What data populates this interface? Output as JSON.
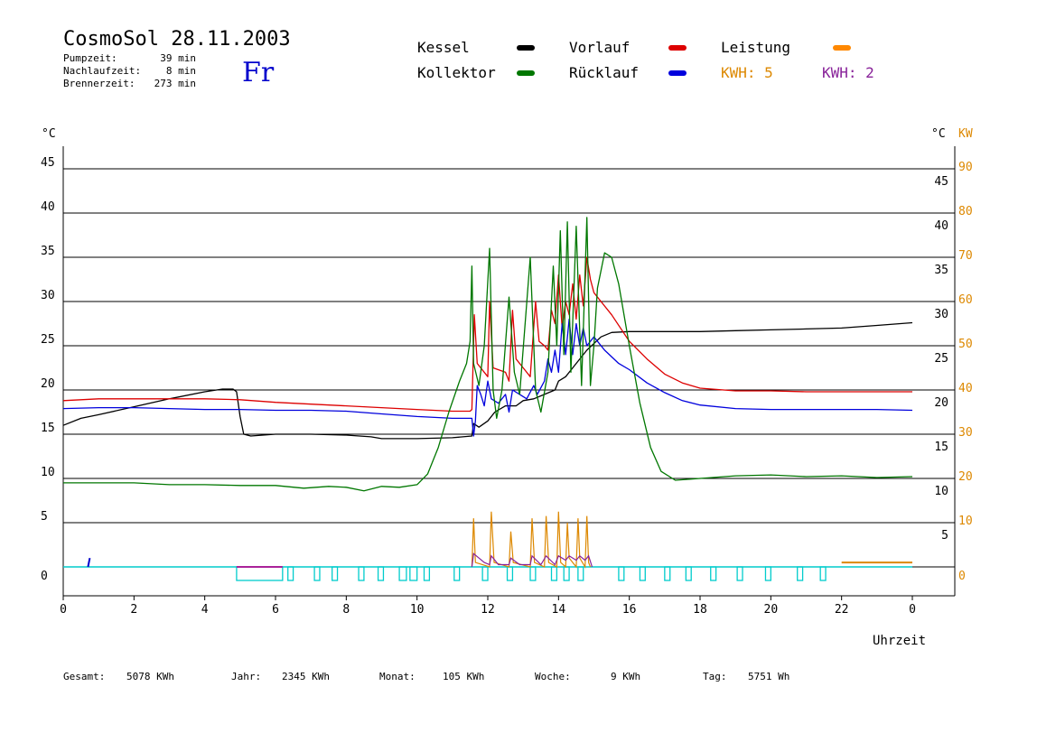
{
  "header": {
    "title": "CosmoSol 28.11.2003",
    "weekday": "Fr",
    "stats": [
      {
        "label": "Pumpzeit:",
        "value": "39 min"
      },
      {
        "label": "Nachlaufzeit:",
        "value": "8 min"
      },
      {
        "label": "Brennerzeit:",
        "value": "273 min"
      }
    ]
  },
  "legend": [
    {
      "label": "Kessel",
      "color": "#000000"
    },
    {
      "label": "Vorlauf",
      "color": "#dd0000"
    },
    {
      "label": "Leistung",
      "color": "#ff8800"
    },
    {
      "label": "Kollektor",
      "color": "#007700"
    },
    {
      "label": "Rücklauf",
      "color": "#0000dd"
    }
  ],
  "kwh_labels": [
    {
      "text": "KWH: 5",
      "color": "#dd8800"
    },
    {
      "text": "KWH: 2",
      "color": "#882299"
    }
  ],
  "footer": [
    {
      "label": "Gesamt:",
      "value": "5078 KWh"
    },
    {
      "label": "Jahr:",
      "value": "2345 KWh"
    },
    {
      "label": "Monat:",
      "value": "105 KWh"
    },
    {
      "label": "Woche:",
      "value": "9 KWh"
    },
    {
      "label": "Tag:",
      "value": "5751 Wh"
    }
  ],
  "chart_data": {
    "type": "line",
    "xlabel": "Uhrzeit",
    "ylabel_left": "°C",
    "ylabel_right": "°C",
    "ylabel_power": "KW",
    "xlim": [
      0,
      24
    ],
    "ylim": [
      0,
      45
    ],
    "grid": true,
    "x_ticks": [
      "0",
      "2",
      "4",
      "6",
      "8",
      "10",
      "12",
      "14",
      "16",
      "18",
      "20",
      "22",
      "0"
    ],
    "y_ticks_left": [
      "5",
      "10",
      "15",
      "20",
      "25",
      "30",
      "35",
      "40",
      "45"
    ],
    "y_ticks_right": [
      "5",
      "10",
      "15",
      "20",
      "25",
      "30",
      "35",
      "40",
      "45"
    ],
    "power_ticks": [
      "0",
      "10",
      "20",
      "30",
      "40",
      "50",
      "60",
      "70",
      "80",
      "90"
    ],
    "zero_label": "0",
    "series": [
      {
        "name": "Kessel",
        "color": "#000000",
        "points": [
          [
            0,
            16
          ],
          [
            0.5,
            16.8
          ],
          [
            1,
            17.2
          ],
          [
            2,
            18.1
          ],
          [
            3,
            19
          ],
          [
            4,
            19.8
          ],
          [
            4.5,
            20.1
          ],
          [
            4.8,
            20.1
          ],
          [
            4.9,
            19.8
          ],
          [
            5,
            17
          ],
          [
            5.1,
            15
          ],
          [
            5.3,
            14.8
          ],
          [
            6,
            15
          ],
          [
            7,
            15
          ],
          [
            8,
            14.9
          ],
          [
            8.7,
            14.7
          ],
          [
            9,
            14.5
          ],
          [
            10,
            14.5
          ],
          [
            11,
            14.6
          ],
          [
            11.55,
            14.8
          ],
          [
            11.6,
            16.2
          ],
          [
            11.75,
            15.8
          ],
          [
            12,
            16.5
          ],
          [
            12.2,
            17.5
          ],
          [
            12.5,
            18.2
          ],
          [
            12.8,
            18.2
          ],
          [
            13,
            18.8
          ],
          [
            13.3,
            19
          ],
          [
            13.6,
            19.5
          ],
          [
            13.9,
            20
          ],
          [
            14,
            21
          ],
          [
            14.2,
            21.5
          ],
          [
            14.5,
            23
          ],
          [
            14.8,
            24.5
          ],
          [
            15.2,
            26
          ],
          [
            15.5,
            26.5
          ],
          [
            16,
            26.6
          ],
          [
            17,
            26.6
          ],
          [
            18,
            26.6
          ],
          [
            19,
            26.7
          ],
          [
            20,
            26.8
          ],
          [
            21,
            26.9
          ],
          [
            22,
            27
          ],
          [
            23,
            27.3
          ],
          [
            24,
            27.6
          ]
        ]
      },
      {
        "name": "Vorlauf",
        "color": "#dd0000",
        "points": [
          [
            0,
            18.8
          ],
          [
            1,
            19
          ],
          [
            2,
            19
          ],
          [
            3,
            19
          ],
          [
            4,
            19
          ],
          [
            5,
            18.9
          ],
          [
            6,
            18.6
          ],
          [
            7,
            18.4
          ],
          [
            8,
            18.2
          ],
          [
            9,
            18
          ],
          [
            10,
            17.8
          ],
          [
            11,
            17.6
          ],
          [
            11.5,
            17.6
          ],
          [
            11.55,
            17.8
          ],
          [
            11.62,
            28.5
          ],
          [
            11.7,
            23
          ],
          [
            12,
            21.5
          ],
          [
            12.05,
            30
          ],
          [
            12.15,
            22.5
          ],
          [
            12.5,
            22
          ],
          [
            12.6,
            21
          ],
          [
            12.7,
            29
          ],
          [
            12.8,
            23.5
          ],
          [
            13,
            22.5
          ],
          [
            13.2,
            21.5
          ],
          [
            13.35,
            30
          ],
          [
            13.45,
            25.5
          ],
          [
            13.6,
            25
          ],
          [
            13.7,
            24.5
          ],
          [
            13.8,
            29
          ],
          [
            13.9,
            27.5
          ],
          [
            14,
            33
          ],
          [
            14.1,
            27
          ],
          [
            14.2,
            30
          ],
          [
            14.3,
            28.5
          ],
          [
            14.4,
            32
          ],
          [
            14.5,
            28
          ],
          [
            14.6,
            33
          ],
          [
            14.7,
            29.5
          ],
          [
            14.8,
            35
          ],
          [
            14.9,
            32.5
          ],
          [
            15,
            31
          ],
          [
            15.2,
            30
          ],
          [
            15.5,
            28.5
          ],
          [
            16,
            25.5
          ],
          [
            16.5,
            23.5
          ],
          [
            17,
            21.8
          ],
          [
            17.5,
            20.8
          ],
          [
            18,
            20.2
          ],
          [
            19,
            19.9
          ],
          [
            20,
            19.9
          ],
          [
            21,
            19.8
          ],
          [
            22,
            19.8
          ],
          [
            23,
            19.8
          ],
          [
            24,
            19.8
          ]
        ]
      },
      {
        "name": "Rücklauf",
        "color": "#0000dd",
        "points": [
          [
            0,
            17.9
          ],
          [
            1,
            18
          ],
          [
            2,
            18
          ],
          [
            3,
            17.9
          ],
          [
            4,
            17.8
          ],
          [
            5,
            17.8
          ],
          [
            6,
            17.7
          ],
          [
            7,
            17.7
          ],
          [
            8,
            17.6
          ],
          [
            9,
            17.3
          ],
          [
            10,
            17
          ],
          [
            11,
            16.8
          ],
          [
            11.55,
            16.8
          ],
          [
            11.6,
            14.8
          ],
          [
            11.65,
            16.5
          ],
          [
            11.7,
            20.5
          ],
          [
            11.8,
            19.5
          ],
          [
            11.9,
            18.2
          ],
          [
            12,
            21
          ],
          [
            12.1,
            19
          ],
          [
            12.3,
            18.5
          ],
          [
            12.5,
            19.5
          ],
          [
            12.6,
            17.5
          ],
          [
            12.7,
            20
          ],
          [
            12.9,
            19.5
          ],
          [
            13.1,
            19
          ],
          [
            13.3,
            20.5
          ],
          [
            13.4,
            19.5
          ],
          [
            13.6,
            21
          ],
          [
            13.7,
            23.5
          ],
          [
            13.8,
            22
          ],
          [
            13.9,
            24.5
          ],
          [
            14,
            22
          ],
          [
            14.1,
            27.5
          ],
          [
            14.2,
            24
          ],
          [
            14.3,
            28
          ],
          [
            14.4,
            24
          ],
          [
            14.5,
            27.5
          ],
          [
            14.6,
            25
          ],
          [
            14.7,
            27
          ],
          [
            14.8,
            25
          ],
          [
            15,
            26
          ],
          [
            15.3,
            24.5
          ],
          [
            15.7,
            23
          ],
          [
            16,
            22.3
          ],
          [
            16.5,
            20.8
          ],
          [
            17,
            19.7
          ],
          [
            17.5,
            18.8
          ],
          [
            18,
            18.3
          ],
          [
            19,
            17.9
          ],
          [
            20,
            17.8
          ],
          [
            21,
            17.8
          ],
          [
            22,
            17.8
          ],
          [
            23,
            17.8
          ],
          [
            24,
            17.7
          ]
        ]
      },
      {
        "name": "Kollektor",
        "color": "#007700",
        "points": [
          [
            0,
            9.5
          ],
          [
            1,
            9.5
          ],
          [
            2,
            9.5
          ],
          [
            3,
            9.3
          ],
          [
            4,
            9.3
          ],
          [
            5,
            9.2
          ],
          [
            6,
            9.2
          ],
          [
            6.8,
            8.9
          ],
          [
            7.5,
            9.1
          ],
          [
            8,
            9
          ],
          [
            8.5,
            8.6
          ],
          [
            9,
            9.1
          ],
          [
            9.5,
            9
          ],
          [
            10,
            9.3
          ],
          [
            10.3,
            10.5
          ],
          [
            10.6,
            13.5
          ],
          [
            10.9,
            17.5
          ],
          [
            11.2,
            21
          ],
          [
            11.4,
            23
          ],
          [
            11.5,
            25.5
          ],
          [
            11.55,
            34
          ],
          [
            11.6,
            23
          ],
          [
            11.75,
            20.5
          ],
          [
            11.9,
            25
          ],
          [
            12.05,
            36
          ],
          [
            12.15,
            20
          ],
          [
            12.25,
            16.8
          ],
          [
            12.4,
            20
          ],
          [
            12.6,
            30.5
          ],
          [
            12.75,
            22
          ],
          [
            12.9,
            19.5
          ],
          [
            13.2,
            35
          ],
          [
            13.35,
            20
          ],
          [
            13.5,
            17.5
          ],
          [
            13.7,
            22
          ],
          [
            13.85,
            34
          ],
          [
            13.95,
            25
          ],
          [
            14.05,
            38
          ],
          [
            14.15,
            24
          ],
          [
            14.25,
            39
          ],
          [
            14.35,
            22
          ],
          [
            14.5,
            38.5
          ],
          [
            14.65,
            20.5
          ],
          [
            14.8,
            39.5
          ],
          [
            14.9,
            20.5
          ],
          [
            15,
            25
          ],
          [
            15.1,
            31.5
          ],
          [
            15.3,
            35.5
          ],
          [
            15.5,
            35
          ],
          [
            15.7,
            32
          ],
          [
            16,
            25
          ],
          [
            16.3,
            18.5
          ],
          [
            16.6,
            13.5
          ],
          [
            16.9,
            10.8
          ],
          [
            17.3,
            9.8
          ],
          [
            18,
            10
          ],
          [
            19,
            10.3
          ],
          [
            20,
            10.4
          ],
          [
            21,
            10.2
          ],
          [
            22,
            10.3
          ],
          [
            23,
            10.1
          ],
          [
            24,
            10.2
          ]
        ]
      }
    ],
    "cyan_pulses": [
      [
        4.9,
        6.2
      ],
      [
        6.35,
        6.5
      ],
      [
        7.1,
        7.25
      ],
      [
        7.6,
        7.75
      ],
      [
        8.35,
        8.5
      ],
      [
        8.9,
        9.05
      ],
      [
        9.5,
        9.7
      ],
      [
        9.8,
        10
      ],
      [
        10.2,
        10.35
      ],
      [
        11.05,
        11.2
      ],
      [
        11.85,
        12
      ],
      [
        12.55,
        12.7
      ],
      [
        13.2,
        13.35
      ],
      [
        13.8,
        13.95
      ],
      [
        14.15,
        14.3
      ],
      [
        14.55,
        14.7
      ],
      [
        15.7,
        15.85
      ],
      [
        16.3,
        16.45
      ],
      [
        17,
        17.15
      ],
      [
        17.6,
        17.75
      ],
      [
        18.3,
        18.45
      ],
      [
        19.05,
        19.2
      ],
      [
        19.85,
        20
      ],
      [
        20.75,
        20.9
      ],
      [
        21.4,
        21.55
      ]
    ],
    "magenta_bar": [
      4.9,
      6.2
    ],
    "power_orange": [
      [
        11.55,
        0
      ],
      [
        11.6,
        11
      ],
      [
        11.65,
        1
      ],
      [
        12.05,
        0
      ],
      [
        12.1,
        12.5
      ],
      [
        12.18,
        1
      ],
      [
        12.6,
        0
      ],
      [
        12.65,
        8
      ],
      [
        12.72,
        1
      ],
      [
        13.2,
        0
      ],
      [
        13.25,
        11
      ],
      [
        13.32,
        1
      ],
      [
        13.6,
        0
      ],
      [
        13.65,
        11.5
      ],
      [
        13.72,
        1
      ],
      [
        13.95,
        0
      ],
      [
        14,
        12.5
      ],
      [
        14.06,
        1
      ],
      [
        14.2,
        0
      ],
      [
        14.25,
        10
      ],
      [
        14.3,
        2
      ],
      [
        14.5,
        0
      ],
      [
        14.55,
        11
      ],
      [
        14.6,
        2
      ],
      [
        14.75,
        0
      ],
      [
        14.8,
        11.5
      ],
      [
        14.85,
        1
      ],
      [
        14.9,
        0
      ]
    ],
    "power_purple": [
      [
        11.55,
        0
      ],
      [
        11.6,
        3
      ],
      [
        11.75,
        2
      ],
      [
        11.9,
        1
      ],
      [
        12.05,
        0.5
      ],
      [
        12.1,
        2.5
      ],
      [
        12.3,
        0.5
      ],
      [
        12.6,
        0.5
      ],
      [
        12.65,
        2
      ],
      [
        12.9,
        0.5
      ],
      [
        13.2,
        0.5
      ],
      [
        13.25,
        2.5
      ],
      [
        13.5,
        0.5
      ],
      [
        13.65,
        2.5
      ],
      [
        13.9,
        0.5
      ],
      [
        14,
        2.5
      ],
      [
        14.2,
        1.5
      ],
      [
        14.3,
        2.5
      ],
      [
        14.5,
        1.5
      ],
      [
        14.6,
        2.5
      ],
      [
        14.75,
        1.5
      ],
      [
        14.85,
        2.5
      ],
      [
        14.95,
        0
      ]
    ],
    "power_right_orange": [
      [
        22,
        1
      ],
      [
        24,
        1
      ]
    ],
    "blue_tick": [
      [
        0.7,
        0
      ],
      [
        0.7,
        1
      ]
    ]
  }
}
